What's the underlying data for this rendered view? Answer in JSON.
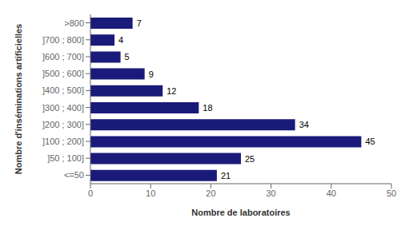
{
  "chart_data": {
    "type": "bar",
    "orientation": "horizontal",
    "categories": [
      "<=50",
      "]50 ; 100]",
      "]100 ; 200]",
      "]200 ; 300]",
      "]300 ; 400]",
      "]400 ; 500]",
      "]500 ; 600]",
      "]600 ; 700]",
      "]700 ; 800]",
      ">800"
    ],
    "values": [
      21,
      25,
      45,
      34,
      18,
      12,
      9,
      5,
      4,
      7
    ],
    "color": "#1a1a7a",
    "xlabel": "Nombre de laboratoires",
    "ylabel": "Nombre d'inséminations artificielles",
    "xlim": [
      0,
      50
    ],
    "xticks": [
      0,
      10,
      20,
      30,
      40,
      50
    ],
    "data_labels": true,
    "grid": false
  }
}
